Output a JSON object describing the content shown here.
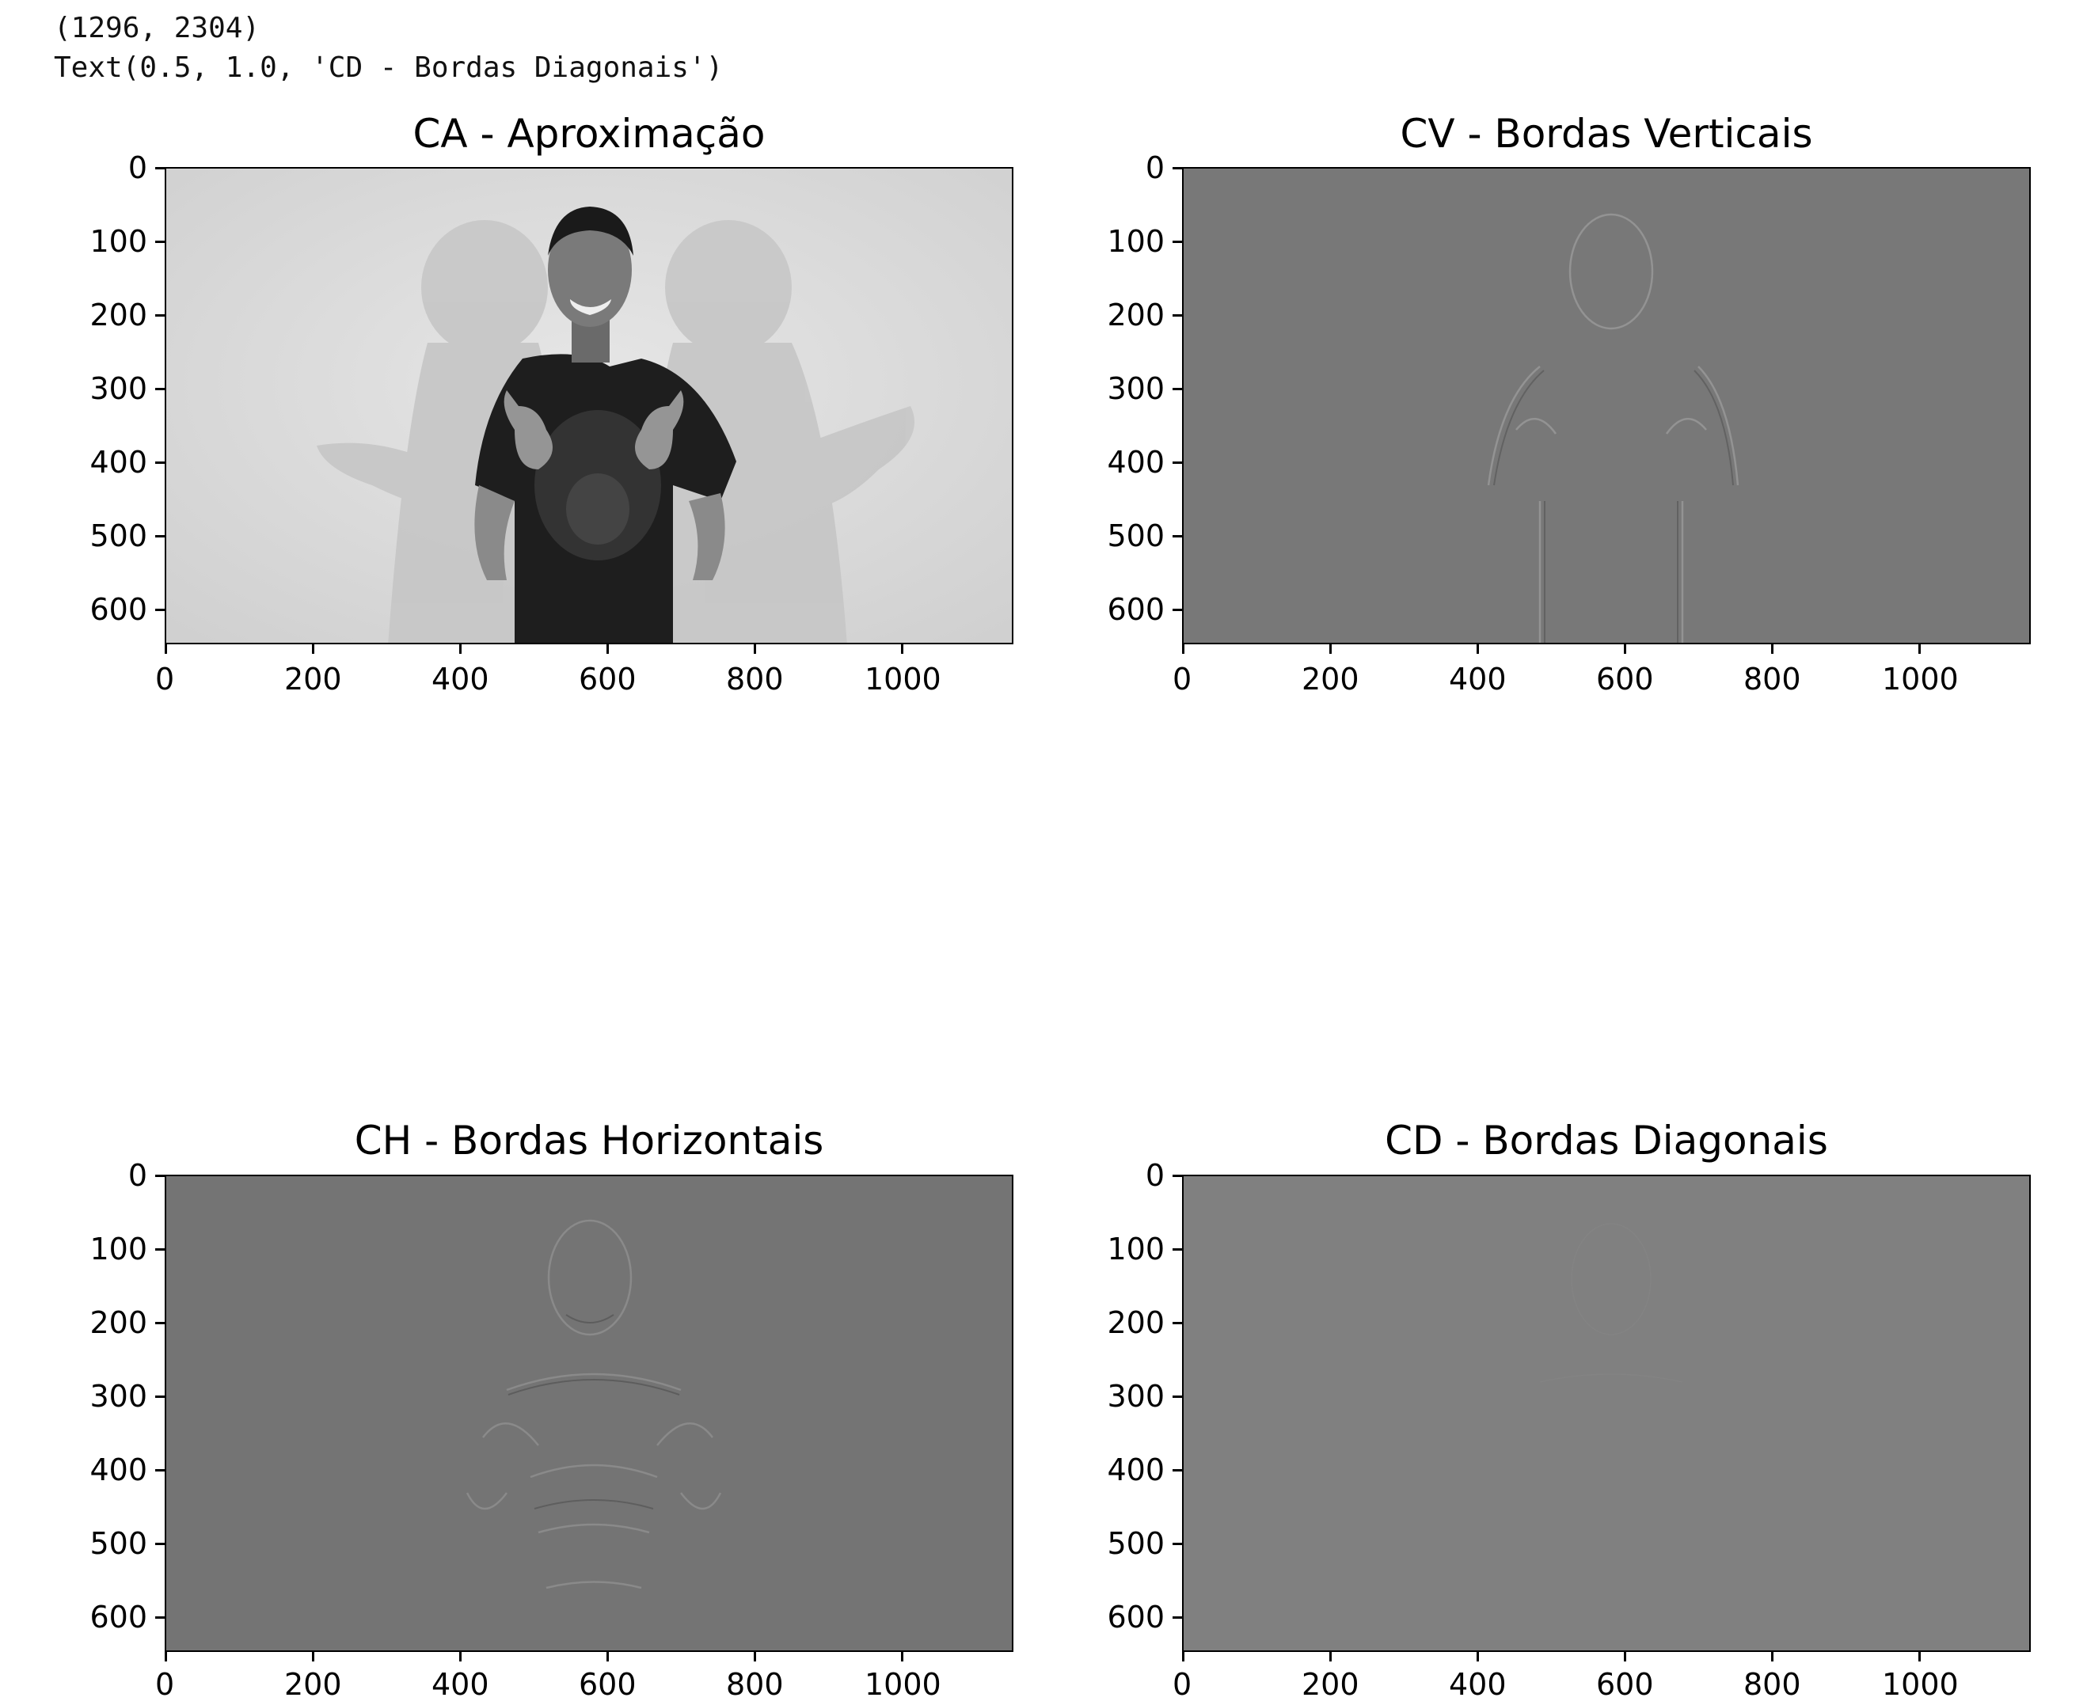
{
  "output_lines": {
    "shape": "(1296, 2304)",
    "text_repr": "Text(0.5, 1.0, 'CD - Bordas Diagonais')"
  },
  "chart_data": [
    {
      "type": "image",
      "title": "CA - Aproximação",
      "xlim": [
        0,
        1152
      ],
      "ylim": [
        648,
        0
      ],
      "x_ticks": [
        "0",
        "200",
        "400",
        "600",
        "800",
        "1000"
      ],
      "y_ticks": [
        "0",
        "100",
        "200",
        "300",
        "400",
        "500",
        "600"
      ],
      "colormap": "gray",
      "content": "grayscale photo of a man in a dark t-shirt making shaka hand gestures against a light wall with shadows"
    },
    {
      "type": "image",
      "title": "CV - Bordas Verticais",
      "xlim": [
        0,
        1152
      ],
      "ylim": [
        648,
        0
      ],
      "x_ticks": [
        "0",
        "200",
        "400",
        "600",
        "800",
        "1000"
      ],
      "y_ticks": [
        "0",
        "100",
        "200",
        "300",
        "400",
        "500",
        "600"
      ],
      "colormap": "gray",
      "content": "mid-gray image with faint vertical edge outlines of the person"
    },
    {
      "type": "image",
      "title": "CH - Bordas Horizontais",
      "xlim": [
        0,
        1152
      ],
      "ylim": [
        648,
        0
      ],
      "x_ticks": [
        "0",
        "200",
        "400",
        "600",
        "800",
        "1000"
      ],
      "y_ticks": [
        "0",
        "100",
        "200",
        "300",
        "400",
        "500",
        "600"
      ],
      "colormap": "gray",
      "content": "mid-gray image with faint horizontal edge outlines of the person"
    },
    {
      "type": "image",
      "title": "CD - Bordas Diagonais",
      "xlim": [
        0,
        1152
      ],
      "ylim": [
        648,
        0
      ],
      "x_ticks": [
        "0",
        "200",
        "400",
        "600",
        "800",
        "1000"
      ],
      "y_ticks": [
        "0",
        "100",
        "200",
        "300",
        "400",
        "500",
        "600"
      ],
      "colormap": "gray",
      "content": "nearly uniform gray image with very faint diagonal detail"
    }
  ],
  "colors": {
    "ca_background": "#dcdcdc",
    "cv_background": "#787878",
    "ch_background": "#747474",
    "cd_background": "#808080"
  }
}
